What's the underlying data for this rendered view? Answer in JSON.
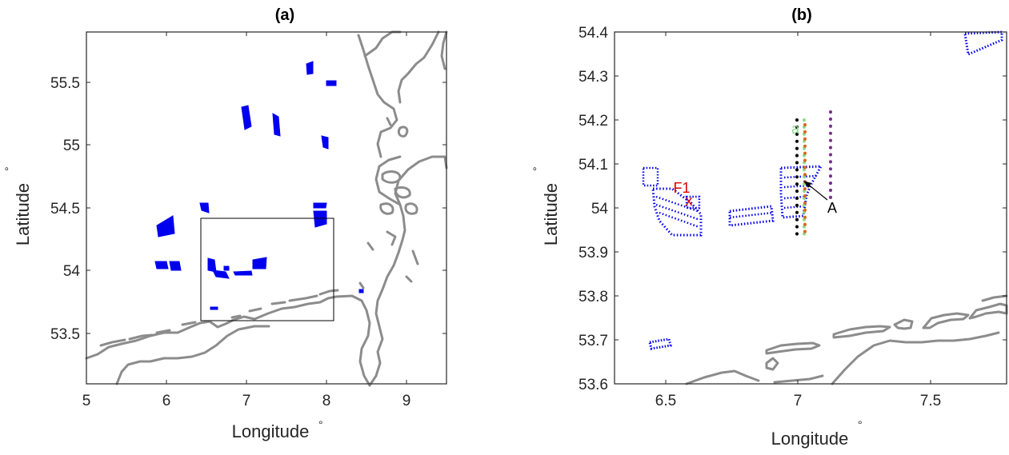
{
  "panels": [
    {
      "title": "(a)",
      "xlabel": "Longitude",
      "ylabel": "Latitude",
      "degree_symbol": "°",
      "xlim": [
        5,
        9.5
      ],
      "ylim": [
        53.1,
        55.9
      ],
      "xticks": [
        "5",
        "6",
        "7",
        "8",
        "9"
      ],
      "yticks": [
        "53.5",
        "54",
        "54.5",
        "55",
        "55.5"
      ],
      "inset_box": {
        "lon": [
          6.33,
          7.85
        ],
        "lat": [
          53.6,
          54.42
        ]
      }
    },
    {
      "title": "(b)",
      "xlabel": "Longitude",
      "ylabel": "Latitude",
      "degree_symbol": "°",
      "xlim": [
        6.3,
        7.8
      ],
      "ylim": [
        53.6,
        54.4
      ],
      "xticks": [
        "6.5",
        "7",
        "7.5"
      ],
      "yticks": [
        "53.6",
        "53.7",
        "53.8",
        "53.9",
        "54",
        "54.1",
        "54.2",
        "54.3",
        "54.4"
      ],
      "annotations": {
        "a": "a",
        "F1": "F1",
        "x": "x",
        "A": "A"
      }
    }
  ],
  "colors": {
    "wind_farm": "#0000ee",
    "coast": "#8c8c8c",
    "transect_green": "#8fd98f",
    "transect_black": "#000000",
    "transect_orange": "#d2691e",
    "transect_purple": "#7b2d8e",
    "marker_red": "#e00000"
  }
}
